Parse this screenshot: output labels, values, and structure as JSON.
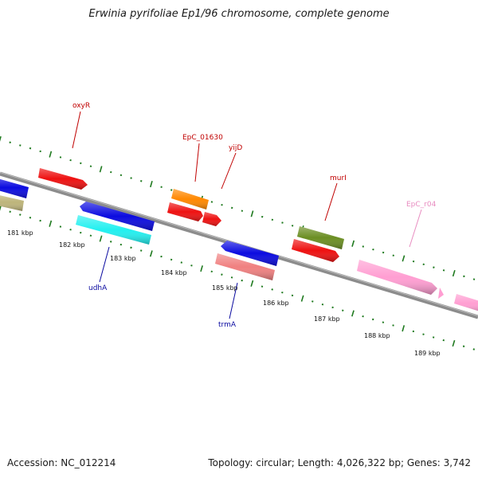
{
  "title": "Erwinia pyrifoliae Ep1/96 chromosome, complete genome",
  "footer": {
    "accession": "Accession: NC_012214",
    "summary": "Topology: circular; Length: 4,026,322 bp; Genes: 3,742"
  },
  "colors": {
    "backbone": "#8c8c8c",
    "tick_dots": "#1f7a1f",
    "label_plus": "#c00000",
    "label_minus": "#0a0aa0",
    "label_rna": "#e88cc0",
    "red": "#ee1111",
    "blue": "#0b0be0",
    "cyan": "#22f0f0",
    "orange": "#ff8800",
    "olive": "#bdb47a",
    "green": "#6b8e23",
    "salmon": "#f08080",
    "pink": "#ff9ed2"
  },
  "kbp_labels": [
    "181 kbp",
    "182 kbp",
    "183 kbp",
    "184 kbp",
    "185 kbp",
    "186 kbp",
    "187 kbp",
    "188 kbp",
    "189 kbp"
  ],
  "gene_labels": {
    "oxyR": "oxyR",
    "EpC_01630": "EpC_01630",
    "yijD": "yijD",
    "murI": "murI",
    "EpC_r04": "EpC_r04",
    "udhA": "udhA",
    "trmA": "trmA"
  }
}
